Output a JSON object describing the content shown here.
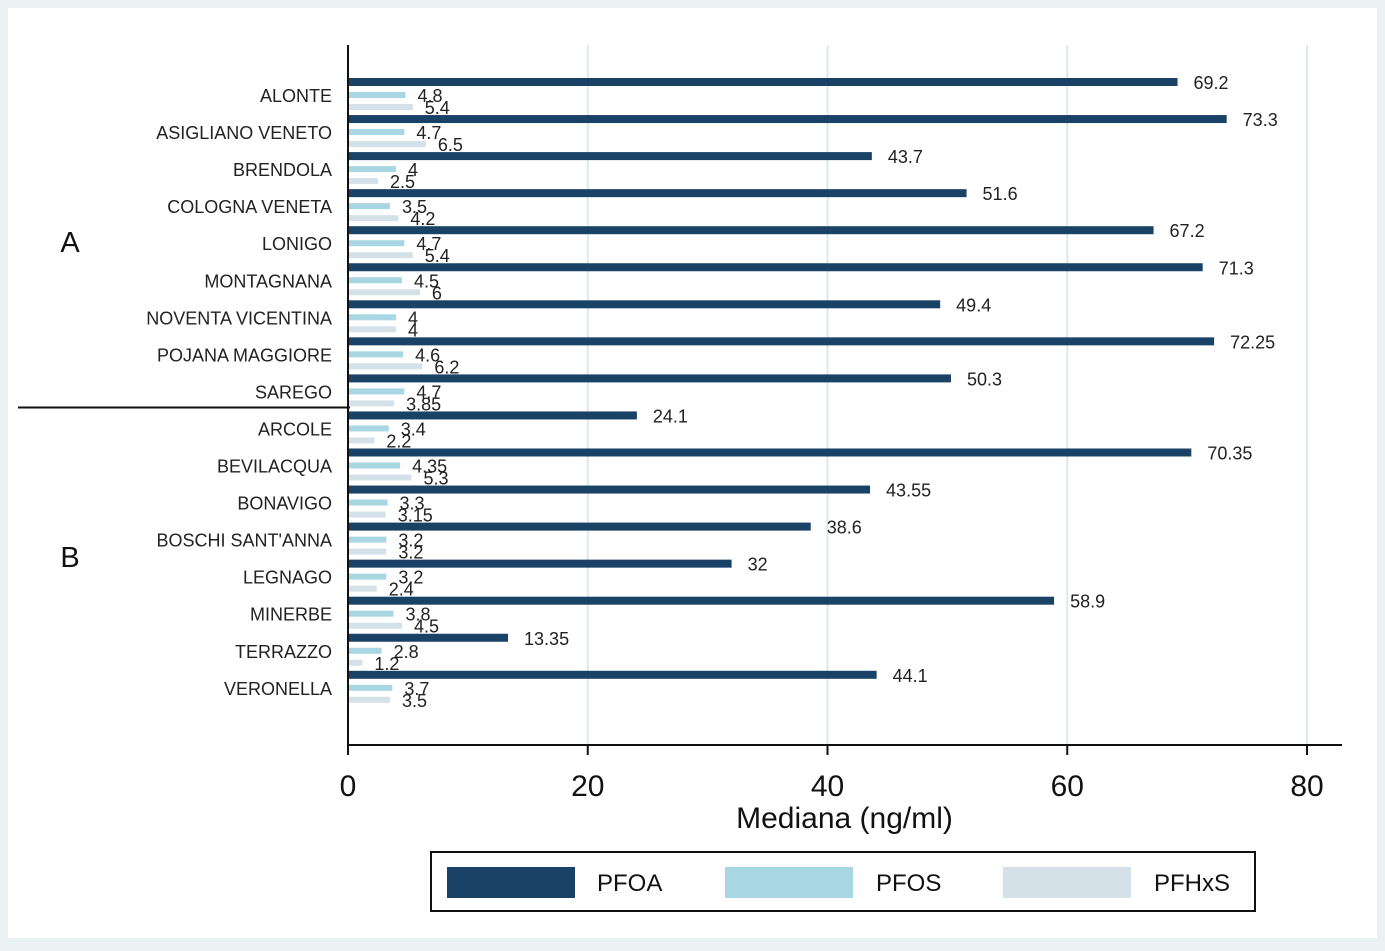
{
  "chart_data": {
    "type": "bar",
    "orientation": "horizontal",
    "xlabel": "Mediana (ng/ml)",
    "xlim": [
      0,
      80
    ],
    "xticks": [
      0,
      20,
      40,
      60,
      80
    ],
    "grid": true,
    "legend_position": "bottom",
    "colors": {
      "PFOA": "#1a4166",
      "PFOS": "#a8d6e3",
      "PFHxS": "#d5e1e8",
      "background": "#eaf2f3",
      "plot_background": "#ffffff",
      "grid": "#dde9ec"
    },
    "series_names": [
      "PFOA",
      "PFOS",
      "PFHxS"
    ],
    "groups": [
      {
        "label": "A",
        "categories": [
          {
            "name": "ALONTE",
            "PFOA": 69.2,
            "PFOS": 4.8,
            "PFHxS": 5.4,
            "PFOA_label": "69.2",
            "PFOS_label": "4.8",
            "PFHxS_label": "5.4"
          },
          {
            "name": "ASIGLIANO VENETO",
            "PFOA": 73.3,
            "PFOS": 4.7,
            "PFHxS": 6.5,
            "PFOA_label": "73.3",
            "PFOS_label": "4.7",
            "PFHxS_label": "6.5"
          },
          {
            "name": "BRENDOLA",
            "PFOA": 43.7,
            "PFOS": 4,
            "PFHxS": 2.5,
            "PFOA_label": "43.7",
            "PFOS_label": "4",
            "PFHxS_label": "2.5"
          },
          {
            "name": "COLOGNA VENETA",
            "PFOA": 51.6,
            "PFOS": 3.5,
            "PFHxS": 4.2,
            "PFOA_label": "51.6",
            "PFOS_label": "3.5",
            "PFHxS_label": "4.2"
          },
          {
            "name": "LONIGO",
            "PFOA": 67.2,
            "PFOS": 4.7,
            "PFHxS": 5.4,
            "PFOA_label": "67.2",
            "PFOS_label": "4.7",
            "PFHxS_label": "5.4"
          },
          {
            "name": "MONTAGNANA",
            "PFOA": 71.3,
            "PFOS": 4.5,
            "PFHxS": 6,
            "PFOA_label": "71.3",
            "PFOS_label": "4.5",
            "PFHxS_label": "6"
          },
          {
            "name": "NOVENTA VICENTINA",
            "PFOA": 49.4,
            "PFOS": 4,
            "PFHxS": 4,
            "PFOA_label": "49.4",
            "PFOS_label": "4",
            "PFHxS_label": "4"
          },
          {
            "name": "POJANA MAGGIORE",
            "PFOA": 72.25,
            "PFOS": 4.6,
            "PFHxS": 6.2,
            "PFOA_label": "72.25",
            "PFOS_label": "4.6",
            "PFHxS_label": "6.2"
          },
          {
            "name": "SAREGO",
            "PFOA": 50.3,
            "PFOS": 4.7,
            "PFHxS": 3.85,
            "PFOA_label": "50.3",
            "PFOS_label": "4.7",
            "PFHxS_label": "3.85"
          }
        ]
      },
      {
        "label": "B",
        "categories": [
          {
            "name": "ARCOLE",
            "PFOA": 24.1,
            "PFOS": 3.4,
            "PFHxS": 2.2,
            "PFOA_label": "24.1",
            "PFOS_label": "3.4",
            "PFHxS_label": "2.2"
          },
          {
            "name": "BEVILACQUA",
            "PFOA": 70.35,
            "PFOS": 4.35,
            "PFHxS": 5.3,
            "PFOA_label": "70.35",
            "PFOS_label": "4.35",
            "PFHxS_label": "5.3"
          },
          {
            "name": "BONAVIGO",
            "PFOA": 43.55,
            "PFOS": 3.3,
            "PFHxS": 3.15,
            "PFOA_label": "43.55",
            "PFOS_label": "3.3",
            "PFHxS_label": "3.15"
          },
          {
            "name": "BOSCHI SANT'ANNA",
            "PFOA": 38.6,
            "PFOS": 3.2,
            "PFHxS": 3.2,
            "PFOA_label": "38.6",
            "PFOS_label": "3.2",
            "PFHxS_label": "3.2"
          },
          {
            "name": "LEGNAGO",
            "PFOA": 32,
            "PFOS": 3.2,
            "PFHxS": 2.4,
            "PFOA_label": "32",
            "PFOS_label": "3.2",
            "PFHxS_label": "2.4"
          },
          {
            "name": "MINERBE",
            "PFOA": 58.9,
            "PFOS": 3.8,
            "PFHxS": 4.5,
            "PFOA_label": "58.9",
            "PFOS_label": "3.8",
            "PFHxS_label": "4.5"
          },
          {
            "name": "TERRAZZO",
            "PFOA": 13.35,
            "PFOS": 2.8,
            "PFHxS": 1.2,
            "PFOA_label": "13.35",
            "PFOS_label": "2.8",
            "PFHxS_label": "1.2"
          },
          {
            "name": "VERONELLA",
            "PFOA": 44.1,
            "PFOS": 3.7,
            "PFHxS": 3.5,
            "PFOA_label": "44.1",
            "PFOS_label": "3.7",
            "PFHxS_label": "3.5"
          }
        ]
      }
    ]
  }
}
